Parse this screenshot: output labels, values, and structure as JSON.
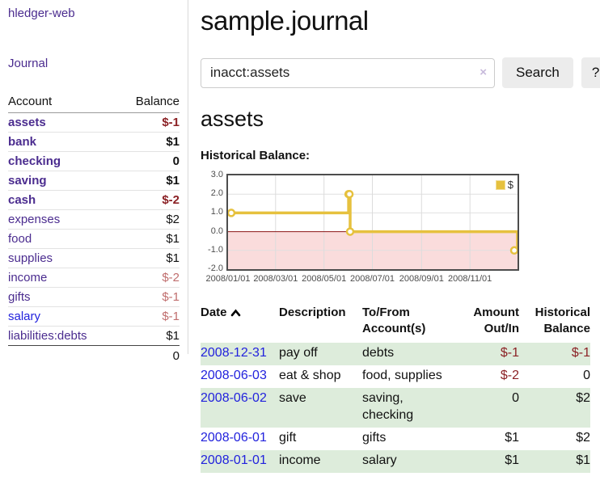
{
  "app": {
    "title": "hledger-web"
  },
  "colors": {
    "link_purple": "#4b2c8f",
    "link_blue": "#2222dd",
    "negative_strong": "#8b2125",
    "negative_soft": "#c06e6e",
    "row_shade_green": "#ddecdb",
    "series_gold": "#e6c13e",
    "negative_region_pink": "#fadcdc",
    "zero_line_red": "#8b1414",
    "button_gray": "#ececec"
  },
  "sidebar": {
    "journal_link": "Journal",
    "account_header": "Account",
    "balance_header": "Balance",
    "accounts": [
      {
        "name": "assets",
        "indent": 1,
        "bold": true,
        "balance": "$-1",
        "tone": "neg"
      },
      {
        "name": "bank",
        "indent": 2,
        "bold": true,
        "balance": "$1",
        "tone": ""
      },
      {
        "name": "checking",
        "indent": 3,
        "bold": true,
        "balance": "0",
        "tone": ""
      },
      {
        "name": "saving",
        "indent": 3,
        "bold": true,
        "balance": "$1",
        "tone": ""
      },
      {
        "name": "cash",
        "indent": 2,
        "bold": true,
        "balance": "$-2",
        "tone": "neg"
      },
      {
        "name": "expenses",
        "indent": 1,
        "bold": false,
        "balance": "$2",
        "tone": ""
      },
      {
        "name": "food",
        "indent": 2,
        "bold": false,
        "balance": "$1",
        "tone": ""
      },
      {
        "name": "supplies",
        "indent": 2,
        "bold": false,
        "balance": "$1",
        "tone": ""
      },
      {
        "name": "income",
        "indent": 1,
        "bold": false,
        "balance": "$-2",
        "tone": "soft"
      },
      {
        "name": "gifts",
        "indent": 2,
        "bold": false,
        "balance": "$-1",
        "tone": "soft"
      },
      {
        "name": "salary",
        "indent": 2,
        "bold": false,
        "balance": "$-1",
        "tone": "soft",
        "link_color": "#2222dd"
      },
      {
        "name": "liabilities:debts",
        "indent": 1,
        "bold": false,
        "balance": "$1",
        "tone": ""
      }
    ],
    "total": "0"
  },
  "header": {
    "title": "sample.journal"
  },
  "search": {
    "value": "inacct:assets",
    "clear_label": "×",
    "button_label": "Search",
    "help_label": "?"
  },
  "account_page": {
    "title": "assets",
    "chart_label": "Historical Balance:"
  },
  "chart_data": {
    "type": "line",
    "step": true,
    "title": "Historical Balance:",
    "series": [
      {
        "name": "$",
        "color": "#e6c13e",
        "points": [
          [
            "2008-01-01",
            1
          ],
          [
            "2008-06-01",
            2
          ],
          [
            "2008-06-02",
            2
          ],
          [
            "2008-06-03",
            0
          ],
          [
            "2008-12-31",
            -1
          ]
        ]
      }
    ],
    "x_range": [
      "2008-01-01",
      "2008-12-31"
    ],
    "x_ticks": [
      "2008/01/01",
      "2008/03/01",
      "2008/05/01",
      "2008/07/01",
      "2008/09/01",
      "2008/11/01"
    ],
    "y_ticks": [
      3.0,
      2.0,
      1.0,
      0.0,
      -1.0,
      -2.0
    ],
    "ylim": [
      -2,
      3
    ],
    "grid": true,
    "legend": "$",
    "legend_position": "top-right",
    "negative_region_color": "#fadcdc",
    "zero_line_color": "#8b1414"
  },
  "register": {
    "columns": [
      "Date",
      "Description",
      "To/From Account(s)",
      "Amount Out/In",
      "Historical Balance"
    ],
    "sort": {
      "column": "Date",
      "direction": "ascending"
    },
    "rows": [
      {
        "date": "2008-12-31",
        "description": "pay off",
        "accounts": "debts",
        "amount": "$-1",
        "amount_tone": "neg",
        "balance": "$-1",
        "balance_tone": "neg",
        "shaded": true
      },
      {
        "date": "2008-06-03",
        "description": "eat & shop",
        "accounts": "food, supplies",
        "amount": "$-2",
        "amount_tone": "neg",
        "balance": "0",
        "balance_tone": "",
        "shaded": false
      },
      {
        "date": "2008-06-02",
        "description": "save",
        "accounts": "saving, checking",
        "amount": "0",
        "amount_tone": "",
        "balance": "$2",
        "balance_tone": "",
        "shaded": true
      },
      {
        "date": "2008-06-01",
        "description": "gift",
        "accounts": "gifts",
        "amount": "$1",
        "amount_tone": "",
        "balance": "$2",
        "balance_tone": "",
        "shaded": false
      },
      {
        "date": "2008-01-01",
        "description": "income",
        "accounts": "salary",
        "amount": "$1",
        "amount_tone": "",
        "balance": "$1",
        "balance_tone": "",
        "shaded": true
      }
    ]
  }
}
